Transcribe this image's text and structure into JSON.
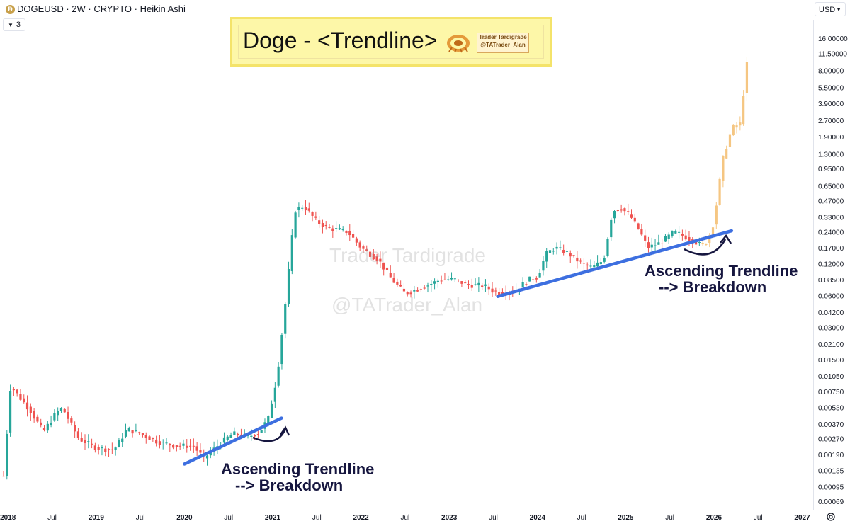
{
  "header": {
    "symbol_title": "DOGEUSD · 2W · CRYPTO · Heikin Ashi",
    "indicator_count": "3",
    "currency": "USD",
    "logo_glyph": "Ð"
  },
  "overlay": {
    "title": "Doge - <Trendline>",
    "brand_line1": "Trader Tardigrade",
    "brand_line2": "@TATrader_Alan",
    "watermark_1": "Trader Tardigrade",
    "watermark_2": "@TATrader_Alan"
  },
  "annotations": {
    "left_line1": "Ascending Trendline",
    "left_line2": "--> Breakdown",
    "right_line1": "Ascending Trendline",
    "right_line2": "--> Breakdown"
  },
  "colors": {
    "up": "#26a69a",
    "down": "#ef5350",
    "projection": "#f5c682",
    "trendline": "#3d6fe0",
    "annotation": "#16163f"
  },
  "chart_data": {
    "type": "candlestick",
    "chart_style": "Heikin Ashi",
    "symbol": "DOGEUSD",
    "interval": "2W",
    "scale": "log",
    "y_tick_labels": [
      "16.00000",
      "11.50000",
      "8.00000",
      "5.50000",
      "3.90000",
      "2.70000",
      "1.90000",
      "1.30000",
      "0.95000",
      "0.65000",
      "0.47000",
      "0.33000",
      "0.24000",
      "0.17000",
      "0.12000",
      "0.08500",
      "0.06000",
      "0.04200",
      "0.03000",
      "0.02100",
      "0.01500",
      "0.01050",
      "0.00750",
      "0.00530",
      "0.00370",
      "0.00270",
      "0.00190",
      "0.00135",
      "0.00095",
      "0.00069"
    ],
    "x_tick_labels": [
      "2018",
      "Jul",
      "2019",
      "Jul",
      "2020",
      "Jul",
      "2021",
      "Jul",
      "2022",
      "Jul",
      "2023",
      "Jul",
      "2024",
      "Jul",
      "2025",
      "Jul",
      "2026",
      "Jul",
      "2027"
    ],
    "ylim": [
      0.00066,
      19
    ],
    "xlim": [
      2017.95,
      2027.1
    ],
    "grid": false,
    "anchors": [
      [
        2017.95,
        0.0012
      ],
      [
        2018.03,
        0.0085
      ],
      [
        2018.12,
        0.0068
      ],
      [
        2018.25,
        0.005
      ],
      [
        2018.4,
        0.0031
      ],
      [
        2018.55,
        0.0048
      ],
      [
        2018.62,
        0.0052
      ],
      [
        2018.8,
        0.0027
      ],
      [
        2019.0,
        0.0022
      ],
      [
        2019.2,
        0.0021
      ],
      [
        2019.35,
        0.0033
      ],
      [
        2019.5,
        0.003
      ],
      [
        2019.7,
        0.0025
      ],
      [
        2019.9,
        0.0023
      ],
      [
        2020.1,
        0.0023
      ],
      [
        2020.22,
        0.00175
      ],
      [
        2020.42,
        0.0025
      ],
      [
        2020.55,
        0.003
      ],
      [
        2020.72,
        0.0028
      ],
      [
        2020.85,
        0.0031
      ],
      [
        2020.95,
        0.0042
      ],
      [
        2021.05,
        0.0105
      ],
      [
        2021.15,
        0.057
      ],
      [
        2021.25,
        0.38
      ],
      [
        2021.35,
        0.42
      ],
      [
        2021.5,
        0.3
      ],
      [
        2021.62,
        0.26
      ],
      [
        2021.75,
        0.25
      ],
      [
        2021.85,
        0.24
      ],
      [
        2022.0,
        0.17
      ],
      [
        2022.2,
        0.13
      ],
      [
        2022.35,
        0.085
      ],
      [
        2022.5,
        0.063
      ],
      [
        2022.62,
        0.068
      ],
      [
        2022.8,
        0.078
      ],
      [
        2022.9,
        0.085
      ],
      [
        2023.05,
        0.086
      ],
      [
        2023.2,
        0.076
      ],
      [
        2023.4,
        0.074
      ],
      [
        2023.5,
        0.066
      ],
      [
        2023.62,
        0.063
      ],
      [
        2023.75,
        0.068
      ],
      [
        2023.9,
        0.085
      ],
      [
        2024.0,
        0.09
      ],
      [
        2024.1,
        0.15
      ],
      [
        2024.2,
        0.17
      ],
      [
        2024.35,
        0.15
      ],
      [
        2024.5,
        0.12
      ],
      [
        2024.62,
        0.11
      ],
      [
        2024.75,
        0.13
      ],
      [
        2024.85,
        0.38
      ],
      [
        2024.95,
        0.4
      ],
      [
        2025.05,
        0.34
      ],
      [
        2025.15,
        0.25
      ],
      [
        2025.25,
        0.17
      ],
      [
        2025.4,
        0.19
      ],
      [
        2025.55,
        0.24
      ],
      [
        2025.65,
        0.22
      ],
      [
        2025.75,
        0.2
      ],
      [
        2025.85,
        0.18
      ],
      [
        2025.92,
        0.19
      ],
      [
        2026.0,
        0.3
      ],
      [
        2026.1,
        1.15
      ],
      [
        2026.2,
        2.25
      ],
      [
        2026.25,
        2.4
      ],
      [
        2026.3,
        2.5
      ],
      [
        2026.35,
        6.5
      ],
      [
        2026.4,
        13.5
      ]
    ],
    "projection_start": 2025.85,
    "trendlines": [
      {
        "from": [
          2020.0,
          0.00155
        ],
        "to": [
          2021.1,
          0.0042
        ]
      },
      {
        "from": [
          2023.55,
          0.059
        ],
        "to": [
          2026.2,
          0.245
        ]
      }
    ]
  }
}
